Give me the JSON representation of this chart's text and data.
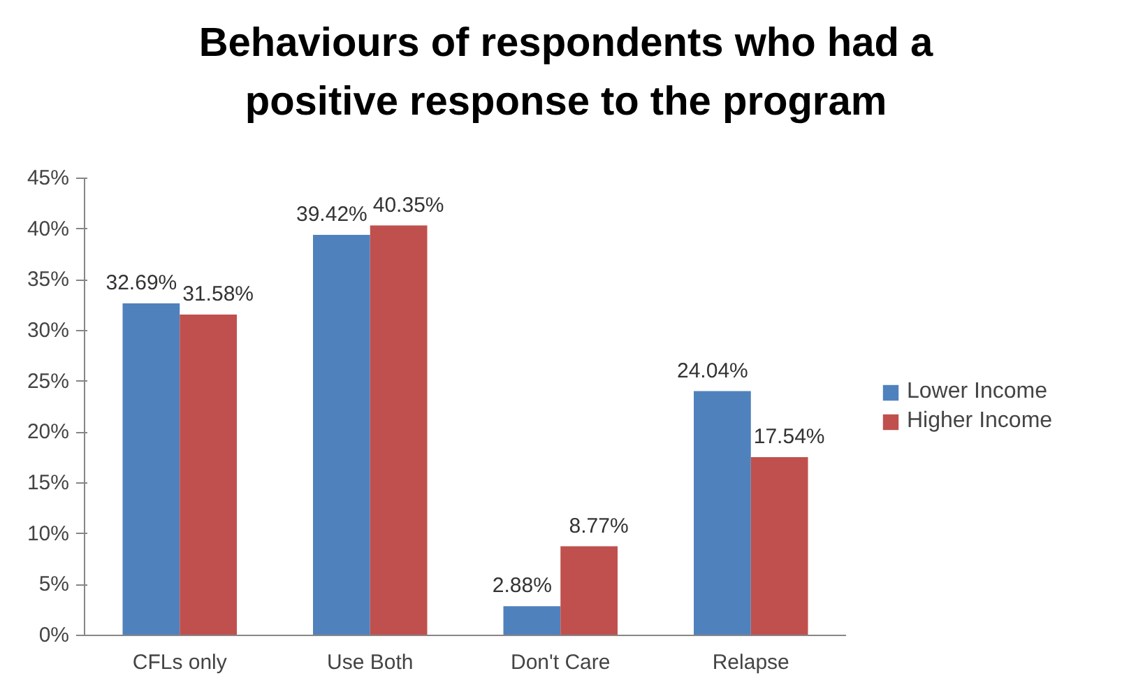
{
  "chart_data": {
    "type": "bar",
    "title": "Behaviours of respondents who had a positive response to the program",
    "categories": [
      "CFLs only",
      "Use Both",
      "Don't Care",
      "Relapse"
    ],
    "series": [
      {
        "name": "Lower Income",
        "color": "#4f81bd",
        "values": [
          32.69,
          39.42,
          2.88,
          24.04
        ],
        "value_labels": [
          "32.69%",
          "39.42%",
          "2.88%",
          "24.04%"
        ]
      },
      {
        "name": "Higher Income",
        "color": "#c0504d",
        "values": [
          31.58,
          40.35,
          8.77,
          17.54
        ],
        "value_labels": [
          "31.58%",
          "40.35%",
          "8.77%",
          "17.54%"
        ]
      }
    ],
    "ylim": [
      0,
      45
    ],
    "yticks": [
      {
        "value": 0,
        "label": "0%"
      },
      {
        "value": 5,
        "label": "5%"
      },
      {
        "value": 10,
        "label": "10%"
      },
      {
        "value": 15,
        "label": "15%"
      },
      {
        "value": 20,
        "label": "20%"
      },
      {
        "value": 25,
        "label": "25%"
      },
      {
        "value": 30,
        "label": "30%"
      },
      {
        "value": 35,
        "label": "35%"
      },
      {
        "value": 40,
        "label": "40%"
      },
      {
        "value": 45,
        "label": "45%"
      }
    ],
    "grid": false,
    "legend": "right"
  }
}
